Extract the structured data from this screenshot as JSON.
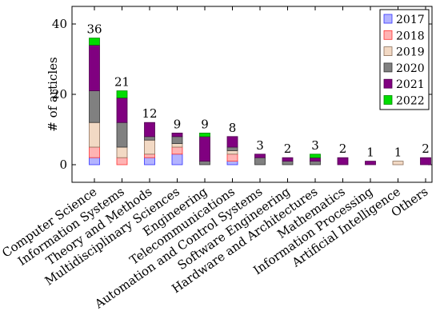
{
  "chart_data": {
    "type": "bar",
    "stacked": true,
    "ylabel": "# of articles",
    "ylim": [
      -5,
      45
    ],
    "yticks": [
      0,
      20,
      40
    ],
    "legend_position": "top-right",
    "categories": [
      "Computer Science",
      "Information Systems",
      "Theory and Methods",
      "Multidisciplinary Sciences",
      "Engineering",
      "Telecommunications",
      "Automation and Control Systems",
      "Software Engineering",
      "Hardware and Architectures",
      "Mathematics",
      "Information Processing",
      "Artificial Intelligence",
      "Others"
    ],
    "totals": [
      "36",
      "21",
      "12",
      "9",
      "9",
      "8",
      "3",
      "2",
      "3",
      "2",
      "1",
      "1",
      "2"
    ],
    "series": [
      {
        "name": "2017",
        "color": "#b3b3ff",
        "stroke": "#3333ff",
        "values": [
          2,
          0,
          2,
          3,
          0,
          1,
          0,
          0,
          0,
          0,
          0,
          0,
          0
        ]
      },
      {
        "name": "2018",
        "color": "#ffb3b3",
        "stroke": "#ff3333",
        "values": [
          3,
          2,
          1,
          2,
          0,
          2,
          0,
          0,
          0,
          0,
          0,
          0,
          0
        ]
      },
      {
        "name": "2019",
        "color": "#f2d9c4",
        "stroke": "#8c6f5a",
        "values": [
          7,
          3,
          4,
          1,
          0,
          1,
          0,
          0,
          0,
          0,
          0,
          1,
          0
        ]
      },
      {
        "name": "2020",
        "color": "#808080",
        "stroke": "#333333",
        "values": [
          9,
          7,
          1,
          2,
          1,
          1,
          2,
          1,
          1,
          0,
          0,
          0,
          0
        ]
      },
      {
        "name": "2021",
        "color": "#800080",
        "stroke": "#4d004d",
        "values": [
          13,
          7,
          4,
          1,
          7,
          3,
          1,
          1,
          1,
          2,
          1,
          0,
          2
        ]
      },
      {
        "name": "2022",
        "color": "#00dd00",
        "stroke": "#008800",
        "values": [
          2,
          2,
          0,
          0,
          1,
          0,
          0,
          0,
          1,
          0,
          0,
          0,
          0
        ]
      }
    ]
  }
}
